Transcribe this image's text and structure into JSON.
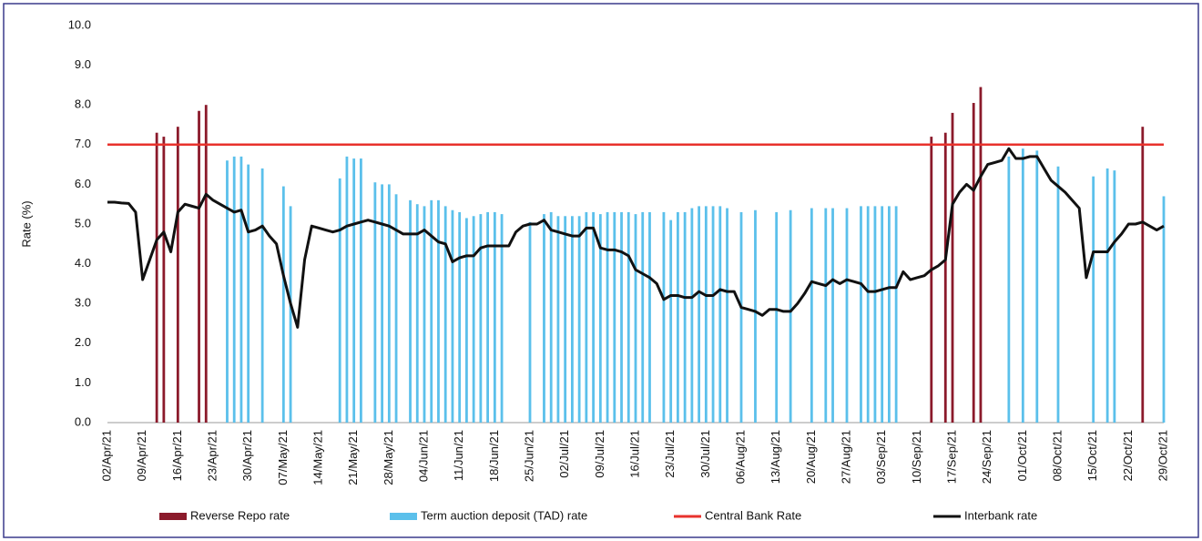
{
  "chart_data": {
    "type": "combo",
    "y_label": "Rate (%)",
    "ylim": [
      0,
      10
    ],
    "yticks": [
      {
        "value": 0,
        "label": "0.0"
      },
      {
        "value": 1,
        "label": "1.0"
      },
      {
        "value": 2,
        "label": "2.0"
      },
      {
        "value": 3,
        "label": "3.0"
      },
      {
        "value": 4,
        "label": "4.0"
      },
      {
        "value": 5,
        "label": "5.0"
      },
      {
        "value": 6,
        "label": "6.0"
      },
      {
        "value": 7,
        "label": "7.0"
      },
      {
        "value": 8,
        "label": "8.0"
      },
      {
        "value": 9,
        "label": "9.0"
      },
      {
        "value": 10,
        "label": "10.0"
      }
    ],
    "categories": [
      "02/Apr/21",
      null,
      null,
      null,
      null,
      "09/Apr/21",
      null,
      null,
      null,
      null,
      "16/Apr/21",
      null,
      null,
      null,
      null,
      "23/Apr/21",
      null,
      null,
      null,
      null,
      "30/Apr/21",
      null,
      null,
      null,
      null,
      "07/May/21",
      null,
      null,
      null,
      null,
      "14/May/21",
      null,
      null,
      null,
      null,
      "21/May/21",
      null,
      null,
      null,
      null,
      "28/May/21",
      null,
      null,
      null,
      null,
      "04/Jun/21",
      null,
      null,
      null,
      null,
      "11/Jun/21",
      null,
      null,
      null,
      null,
      "18/Jun/21",
      null,
      null,
      null,
      null,
      "25/Jun/21",
      null,
      null,
      null,
      null,
      "02/Jul/21",
      null,
      null,
      null,
      null,
      "09/Jul/21",
      null,
      null,
      null,
      null,
      "16/Jul/21",
      null,
      null,
      null,
      null,
      "23/Jul/21",
      null,
      null,
      null,
      null,
      "30/Jul/21",
      null,
      null,
      null,
      null,
      "06/Aug/21",
      null,
      null,
      null,
      null,
      "13/Aug/21",
      null,
      null,
      null,
      null,
      "20/Aug/21",
      null,
      null,
      null,
      null,
      "27/Aug/21",
      null,
      null,
      null,
      null,
      "03/Sep/21",
      null,
      null,
      null,
      null,
      "10/Sep/21",
      null,
      null,
      null,
      null,
      "17/Sep/21",
      null,
      null,
      null,
      null,
      "24/Sep/21",
      null,
      null,
      null,
      null,
      "01/Oct/21",
      null,
      null,
      null,
      null,
      "08/Oct/21",
      null,
      null,
      null,
      null,
      "15/Oct/21",
      null,
      null,
      null,
      null,
      "22/Oct/21",
      null,
      null,
      null,
      null,
      "29/Oct/21"
    ],
    "series": [
      {
        "name": "Reverse Repo rate",
        "type": "bar",
        "color": "#8b1a2b",
        "values": [
          null,
          null,
          null,
          null,
          null,
          null,
          null,
          7.3,
          7.2,
          null,
          7.45,
          null,
          null,
          7.85,
          8.0,
          null,
          null,
          null,
          null,
          null,
          null,
          null,
          null,
          null,
          null,
          null,
          null,
          null,
          null,
          null,
          null,
          null,
          null,
          null,
          null,
          null,
          null,
          null,
          null,
          null,
          null,
          null,
          null,
          null,
          null,
          null,
          null,
          null,
          null,
          null,
          null,
          null,
          null,
          null,
          null,
          null,
          null,
          null,
          null,
          null,
          null,
          null,
          null,
          null,
          null,
          null,
          null,
          null,
          null,
          null,
          null,
          null,
          null,
          null,
          null,
          null,
          null,
          null,
          null,
          null,
          null,
          null,
          null,
          null,
          null,
          null,
          null,
          null,
          null,
          null,
          null,
          null,
          null,
          null,
          null,
          null,
          null,
          null,
          null,
          null,
          null,
          null,
          null,
          null,
          null,
          null,
          null,
          null,
          null,
          null,
          null,
          null,
          null,
          null,
          null,
          null,
          null,
          7.2,
          null,
          7.3,
          7.8,
          null,
          null,
          8.05,
          8.45,
          null,
          null,
          null,
          null,
          null,
          null,
          null,
          null,
          null,
          null,
          null,
          null,
          null,
          null,
          null,
          null,
          null,
          null,
          null,
          null,
          null,
          null,
          7.45,
          null,
          null,
          null
        ]
      },
      {
        "name": "Term auction deposit (TAD) rate",
        "type": "bar",
        "color": "#5bc0eb",
        "values": [
          null,
          null,
          null,
          null,
          null,
          null,
          null,
          null,
          null,
          null,
          null,
          null,
          null,
          null,
          null,
          null,
          null,
          6.6,
          6.7,
          6.7,
          6.5,
          null,
          6.4,
          null,
          null,
          5.95,
          5.45,
          null,
          null,
          null,
          null,
          null,
          null,
          6.15,
          6.7,
          6.65,
          6.65,
          null,
          6.05,
          6.0,
          6.0,
          5.75,
          null,
          5.6,
          5.5,
          5.45,
          5.6,
          5.6,
          5.45,
          5.35,
          5.3,
          5.15,
          5.2,
          5.25,
          5.3,
          5.3,
          5.25,
          null,
          null,
          null,
          5.05,
          null,
          5.25,
          5.3,
          5.2,
          5.2,
          5.2,
          5.2,
          5.3,
          5.3,
          5.25,
          5.3,
          5.3,
          5.3,
          5.3,
          5.25,
          5.3,
          5.3,
          null,
          5.3,
          5.1,
          5.3,
          5.3,
          5.4,
          5.45,
          5.45,
          5.45,
          5.45,
          5.4,
          null,
          5.3,
          null,
          5.35,
          null,
          null,
          5.3,
          null,
          5.35,
          null,
          null,
          5.4,
          null,
          5.4,
          5.4,
          null,
          5.4,
          null,
          5.45,
          5.45,
          5.45,
          5.45,
          5.45,
          5.45,
          null,
          null,
          null,
          null,
          null,
          null,
          null,
          null,
          null,
          null,
          null,
          null,
          null,
          null,
          null,
          6.7,
          null,
          6.9,
          null,
          6.85,
          null,
          null,
          6.45,
          null,
          null,
          null,
          null,
          6.2,
          null,
          6.4,
          6.35,
          null,
          null,
          null,
          null,
          null,
          null,
          5.7
        ]
      },
      {
        "name": "Central Bank Rate",
        "type": "line",
        "color": "#e8322c",
        "values": [
          7,
          7,
          7,
          7,
          7,
          7,
          7,
          7,
          7,
          7,
          7,
          7,
          7,
          7,
          7,
          7,
          7,
          7,
          7,
          7,
          7,
          7,
          7,
          7,
          7,
          7,
          7,
          7,
          7,
          7,
          7,
          7,
          7,
          7,
          7,
          7,
          7,
          7,
          7,
          7,
          7,
          7,
          7,
          7,
          7,
          7,
          7,
          7,
          7,
          7,
          7,
          7,
          7,
          7,
          7,
          7,
          7,
          7,
          7,
          7,
          7,
          7,
          7,
          7,
          7,
          7,
          7,
          7,
          7,
          7,
          7,
          7,
          7,
          7,
          7,
          7,
          7,
          7,
          7,
          7,
          7,
          7,
          7,
          7,
          7,
          7,
          7,
          7,
          7,
          7,
          7,
          7,
          7,
          7,
          7,
          7,
          7,
          7,
          7,
          7,
          7,
          7,
          7,
          7,
          7,
          7,
          7,
          7,
          7,
          7,
          7,
          7,
          7,
          7,
          7,
          7,
          7,
          7,
          7,
          7,
          7,
          7,
          7,
          7,
          7,
          7,
          7,
          7,
          7,
          7,
          7,
          7,
          7,
          7,
          7,
          7,
          7,
          7,
          7,
          7,
          7,
          7,
          7,
          7,
          7,
          7,
          7,
          7,
          7,
          7,
          7
        ]
      },
      {
        "name": "Interbank rate",
        "type": "line",
        "color": "#111111",
        "values": [
          5.55,
          5.55,
          5.53,
          5.52,
          5.3,
          3.6,
          4.1,
          4.6,
          4.8,
          4.3,
          5.3,
          5.5,
          5.45,
          5.4,
          5.75,
          5.6,
          5.5,
          5.4,
          5.3,
          5.35,
          4.8,
          4.85,
          4.95,
          4.7,
          4.5,
          3.7,
          3.0,
          2.4,
          4.1,
          4.95,
          4.9,
          4.85,
          4.8,
          4.85,
          4.95,
          5.0,
          5.05,
          5.1,
          5.05,
          5.0,
          4.95,
          4.85,
          4.75,
          4.75,
          4.75,
          4.85,
          4.7,
          4.55,
          4.5,
          4.05,
          4.15,
          4.2,
          4.2,
          4.4,
          4.45,
          4.45,
          4.45,
          4.45,
          4.8,
          4.95,
          5.0,
          5.0,
          5.1,
          4.85,
          4.8,
          4.75,
          4.7,
          4.7,
          4.9,
          4.9,
          4.4,
          4.35,
          4.35,
          4.3,
          4.2,
          3.85,
          3.75,
          3.65,
          3.5,
          3.1,
          3.2,
          3.2,
          3.15,
          3.15,
          3.3,
          3.2,
          3.2,
          3.35,
          3.3,
          3.3,
          2.9,
          2.85,
          2.8,
          2.7,
          2.85,
          2.85,
          2.8,
          2.8,
          3.0,
          3.25,
          3.55,
          3.5,
          3.45,
          3.6,
          3.5,
          3.6,
          3.55,
          3.5,
          3.3,
          3.3,
          3.35,
          3.4,
          3.4,
          3.8,
          3.6,
          3.65,
          3.7,
          3.85,
          3.95,
          4.1,
          5.5,
          5.8,
          6.0,
          5.85,
          6.2,
          6.5,
          6.55,
          6.6,
          6.9,
          6.65,
          6.65,
          6.7,
          6.7,
          6.4,
          6.1,
          5.95,
          5.8,
          5.6,
          5.4,
          3.65,
          4.3,
          4.3,
          4.3,
          4.55,
          4.75,
          5.0,
          5.0,
          5.05,
          4.95,
          4.85,
          4.95
        ]
      }
    ]
  }
}
